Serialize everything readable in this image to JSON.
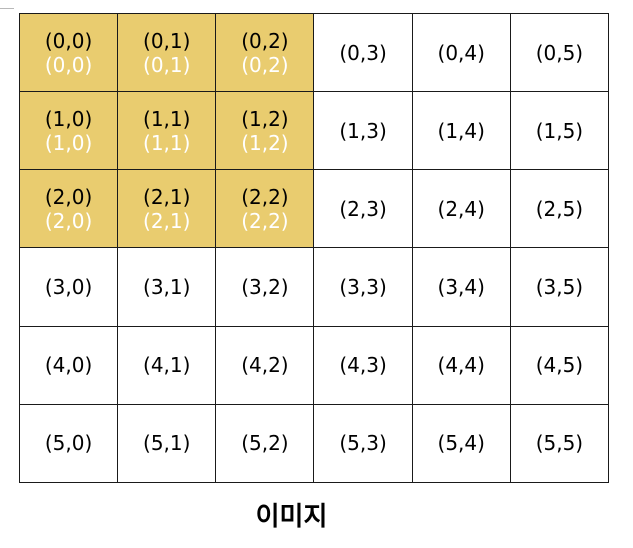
{
  "caption": "이미지",
  "colors": {
    "highlight": "#e9cc6f",
    "sub_label": "#ffffff",
    "border": "#1a1a1a"
  },
  "grid": {
    "rows": [
      [
        {
          "label": "(0,0)",
          "sub": "(0,0)",
          "highlight": true
        },
        {
          "label": "(0,1)",
          "sub": "(0,1)",
          "highlight": true
        },
        {
          "label": "(0,2)",
          "sub": "(0,2)",
          "highlight": true
        },
        {
          "label": "(0,3)"
        },
        {
          "label": "(0,4)"
        },
        {
          "label": "(0,5)"
        }
      ],
      [
        {
          "label": "(1,0)",
          "sub": "(1,0)",
          "highlight": true
        },
        {
          "label": "(1,1)",
          "sub": "(1,1)",
          "highlight": true
        },
        {
          "label": "(1,2)",
          "sub": "(1,2)",
          "highlight": true
        },
        {
          "label": "(1,3)"
        },
        {
          "label": "(1,4)"
        },
        {
          "label": "(1,5)"
        }
      ],
      [
        {
          "label": "(2,0)",
          "sub": "(2,0)",
          "highlight": true
        },
        {
          "label": "(2,1)",
          "sub": "(2,1)",
          "highlight": true
        },
        {
          "label": "(2,2)",
          "sub": "(2,2)",
          "highlight": true
        },
        {
          "label": "(2,3)"
        },
        {
          "label": "(2,4)"
        },
        {
          "label": "(2,5)"
        }
      ],
      [
        {
          "label": "(3,0)"
        },
        {
          "label": "(3,1)"
        },
        {
          "label": "(3,2)"
        },
        {
          "label": "(3,3)"
        },
        {
          "label": "(3,4)"
        },
        {
          "label": "(3,5)"
        }
      ],
      [
        {
          "label": "(4,0)"
        },
        {
          "label": "(4,1)"
        },
        {
          "label": "(4,2)"
        },
        {
          "label": "(4,3)"
        },
        {
          "label": "(4,4)"
        },
        {
          "label": "(4,5)"
        }
      ],
      [
        {
          "label": "(5,0)"
        },
        {
          "label": "(5,1)"
        },
        {
          "label": "(5,2)"
        },
        {
          "label": "(5,3)"
        },
        {
          "label": "(5,4)"
        },
        {
          "label": "(5,5)"
        }
      ]
    ]
  }
}
